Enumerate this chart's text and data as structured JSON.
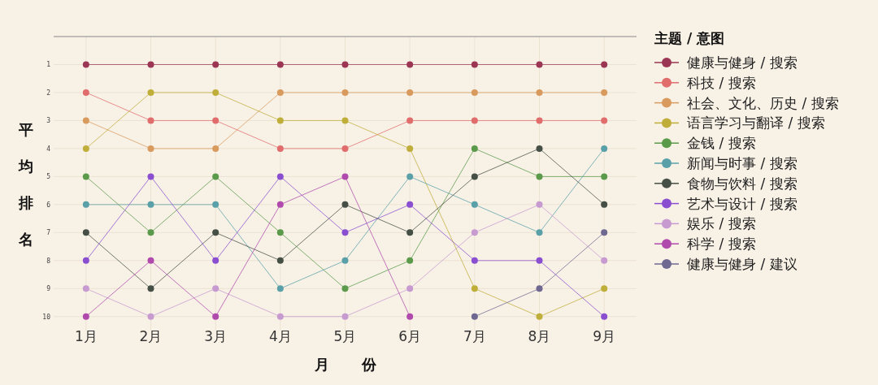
{
  "chart_data": {
    "type": "line",
    "xlabel": "月份",
    "ylabel": "平均排名",
    "legend_title": "主题 / 意图",
    "categories": [
      "1月",
      "2月",
      "3月",
      "4月",
      "5月",
      "6月",
      "7月",
      "8月",
      "9月"
    ],
    "ylim": [
      10.5,
      0
    ],
    "yticks": [
      1,
      2,
      3,
      4,
      5,
      6,
      7,
      8,
      9,
      10
    ],
    "grid": true,
    "legend": "right",
    "marker": "circle",
    "line_style": "solid",
    "series": [
      {
        "name": "健康与健身 / 搜索",
        "color": "#9b3654",
        "values": [
          1,
          1,
          1,
          1,
          1,
          1,
          1,
          1,
          1
        ]
      },
      {
        "name": "科技 / 搜索",
        "color": "#e06c6c",
        "values": [
          2,
          3,
          3,
          4,
          4,
          3,
          3,
          3,
          3
        ]
      },
      {
        "name": "社会、文化、历史 / 搜索",
        "color": "#d99a5e",
        "values": [
          3,
          4,
          4,
          2,
          2,
          2,
          2,
          2,
          2
        ]
      },
      {
        "name": "语言学习与翻译 / 搜索",
        "color": "#bfae3a",
        "values": [
          4,
          2,
          2,
          3,
          3,
          4,
          9,
          10,
          9
        ]
      },
      {
        "name": "金钱 / 搜索",
        "color": "#5a9a4a",
        "values": [
          5,
          7,
          5,
          7,
          9,
          8,
          4,
          5,
          5
        ]
      },
      {
        "name": "新闻与时事 / 搜索",
        "color": "#5aa0a8",
        "values": [
          6,
          6,
          6,
          9,
          8,
          5,
          6,
          7,
          4
        ]
      },
      {
        "name": "食物与饮料 / 搜索",
        "color": "#454f45",
        "values": [
          7,
          9,
          7,
          8,
          6,
          7,
          5,
          4,
          6
        ]
      },
      {
        "name": "艺术与设计 / 搜索",
        "color": "#8a4fd0",
        "values": [
          8,
          5,
          8,
          5,
          7,
          6,
          8,
          8,
          10
        ]
      },
      {
        "name": "娱乐 / 搜索",
        "color": "#c79ad0",
        "values": [
          9,
          10,
          9,
          10,
          10,
          9,
          7,
          6,
          8
        ]
      },
      {
        "name": "科学 / 搜索",
        "color": "#b04aac",
        "values": [
          10,
          8,
          10,
          6,
          5,
          10,
          null,
          null,
          null
        ]
      },
      {
        "name": "健康与健身 / 建议",
        "color": "#6f6890",
        "values": [
          null,
          null,
          null,
          null,
          null,
          null,
          10,
          9,
          7
        ]
      }
    ]
  }
}
